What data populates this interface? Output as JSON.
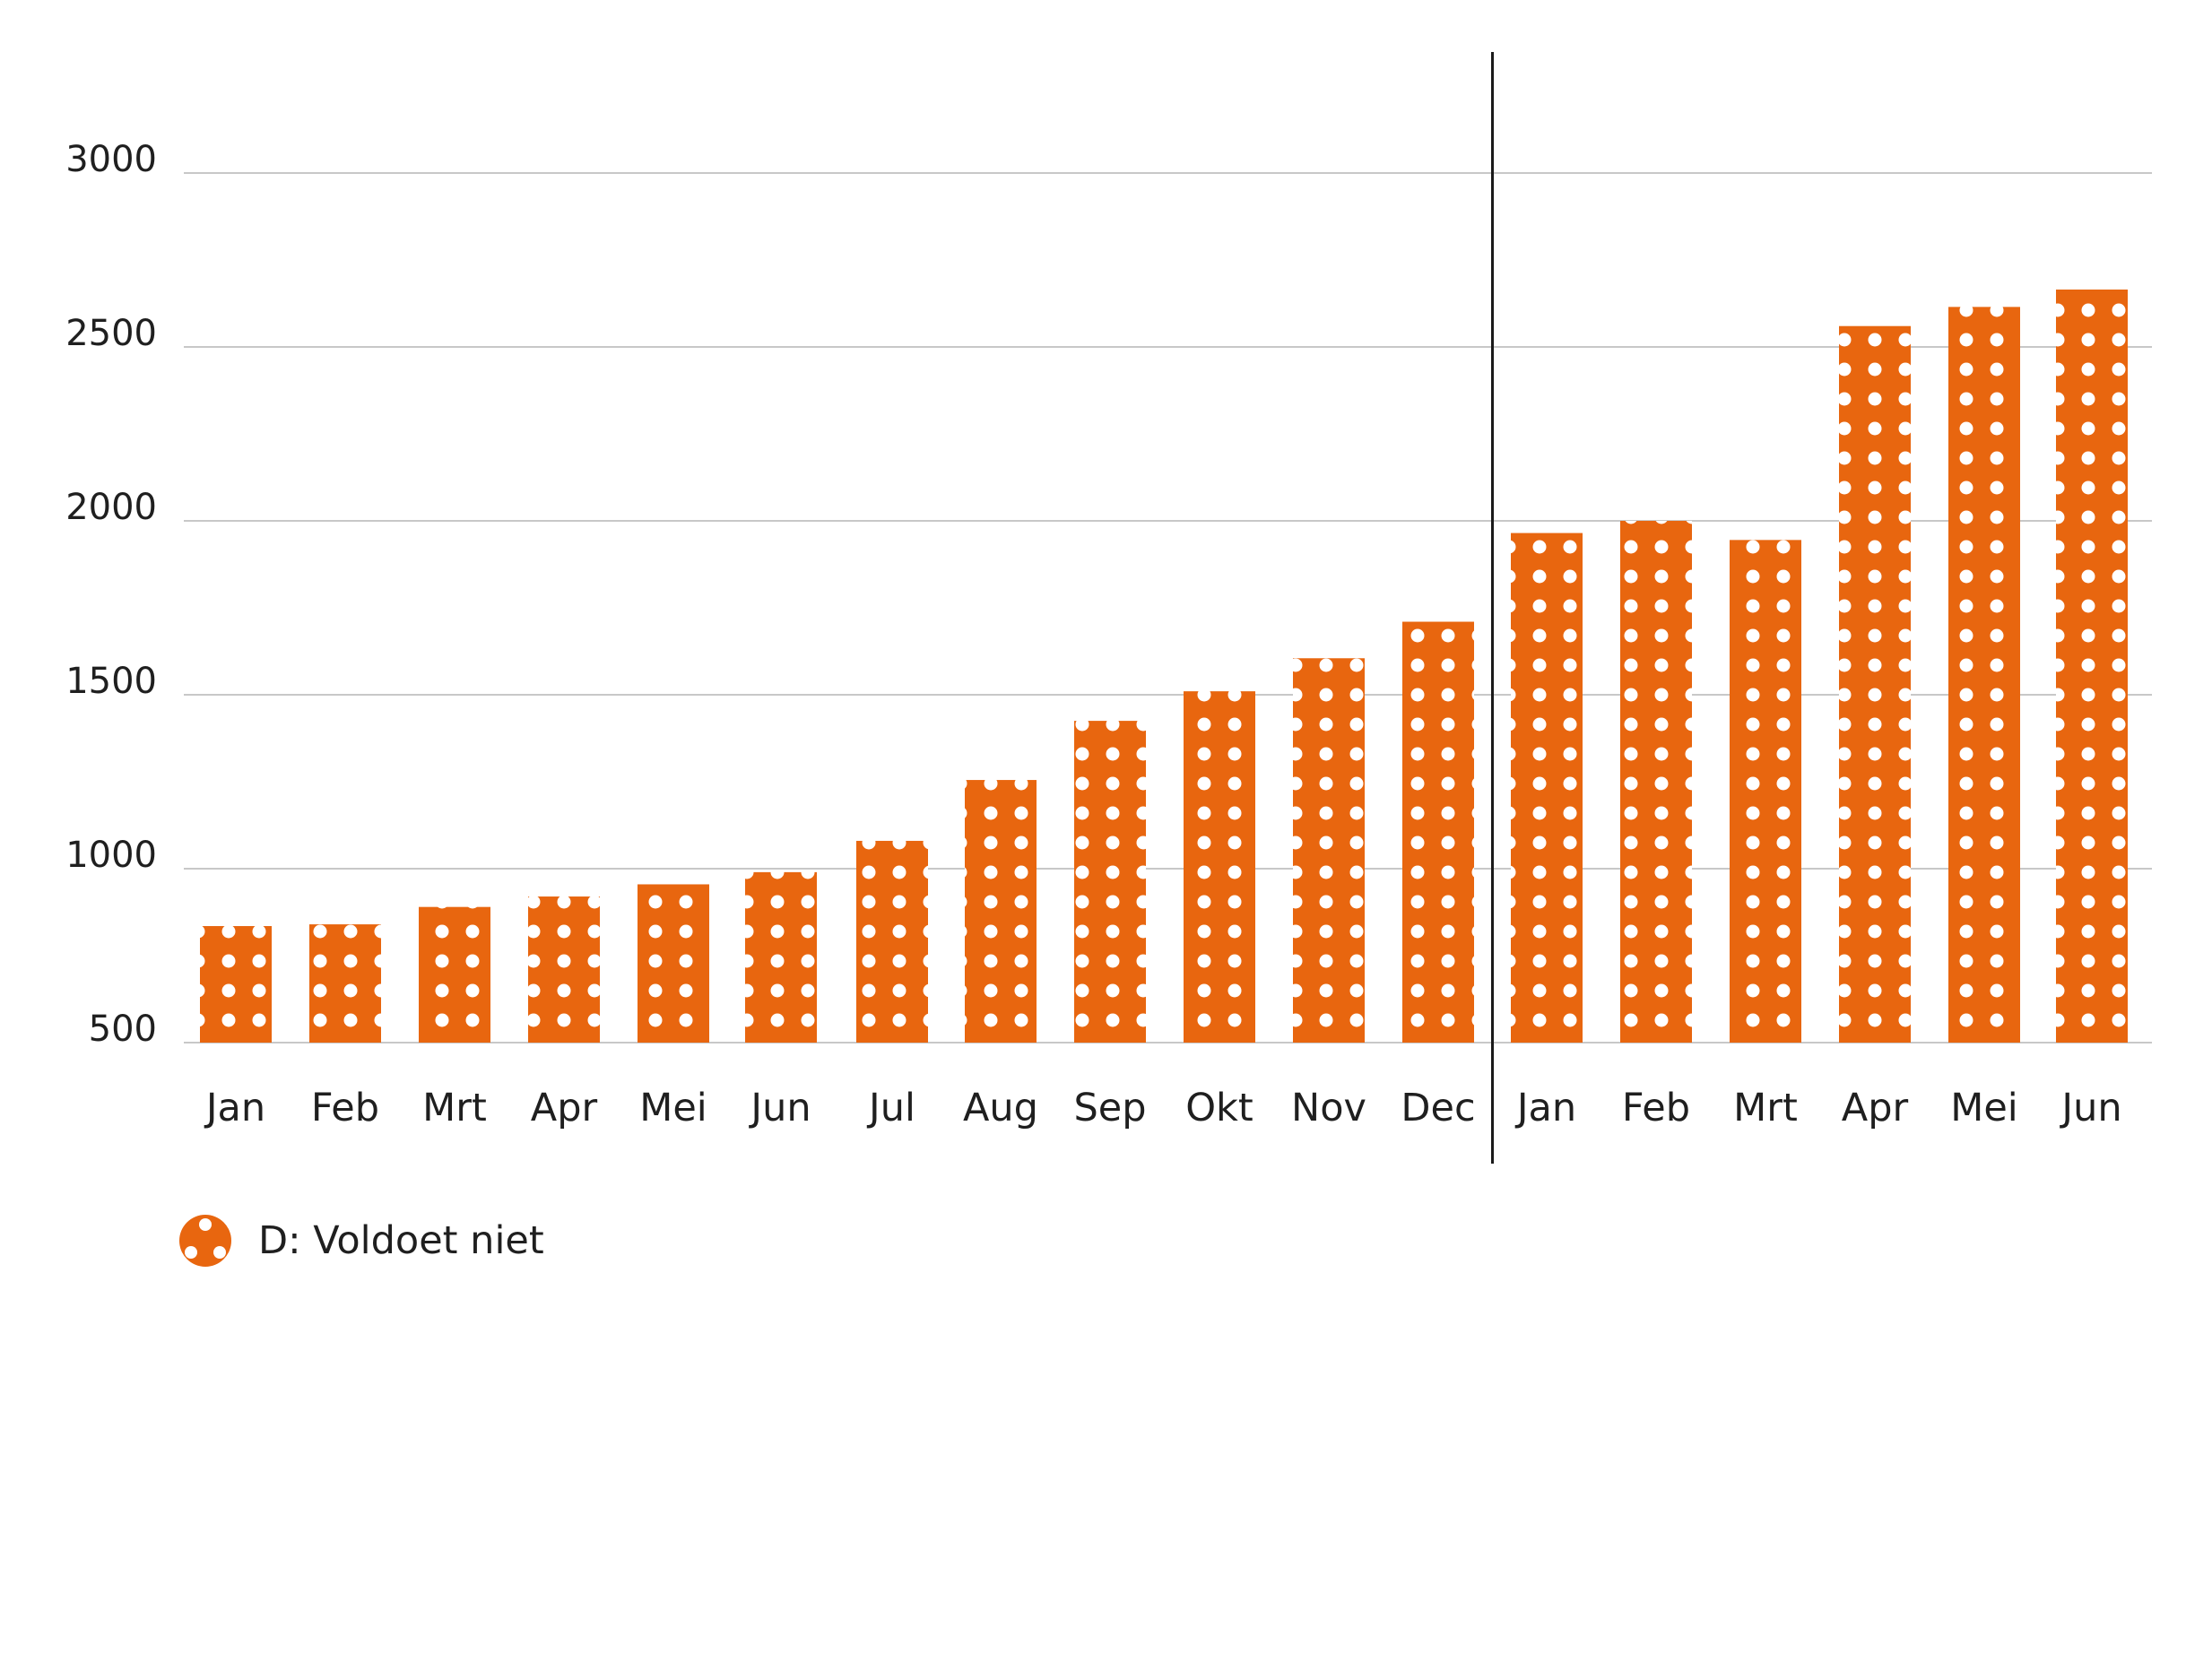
{
  "chart_data": {
    "type": "bar",
    "categories": [
      "Jan",
      "Feb",
      "Mrt",
      "Apr",
      "Mei",
      "Jun",
      "Jul",
      "Aug",
      "Sep",
      "Okt",
      "Nov",
      "Dec",
      "Jan",
      "Feb",
      "Mrt",
      "Apr",
      "Mei",
      "Jun"
    ],
    "series": [
      {
        "name": "D: Voldoet niet",
        "values": [
          835,
          840,
          890,
          920,
          955,
          990,
          1080,
          1255,
          1425,
          1510,
          1605,
          1710,
          1965,
          2000,
          1945,
          2560,
          2615,
          2665
        ],
        "color": "#e8660f",
        "pattern": "white-dots"
      }
    ],
    "yticks": [
      500,
      1000,
      1500,
      2000,
      2500,
      3000
    ],
    "ylim": [
      500,
      3350
    ],
    "grid": true,
    "period_separator_after_index": 11,
    "legend": {
      "label": "D: Voldoet niet",
      "position": "bottom-left"
    },
    "title": "",
    "xlabel": "",
    "ylabel": ""
  }
}
